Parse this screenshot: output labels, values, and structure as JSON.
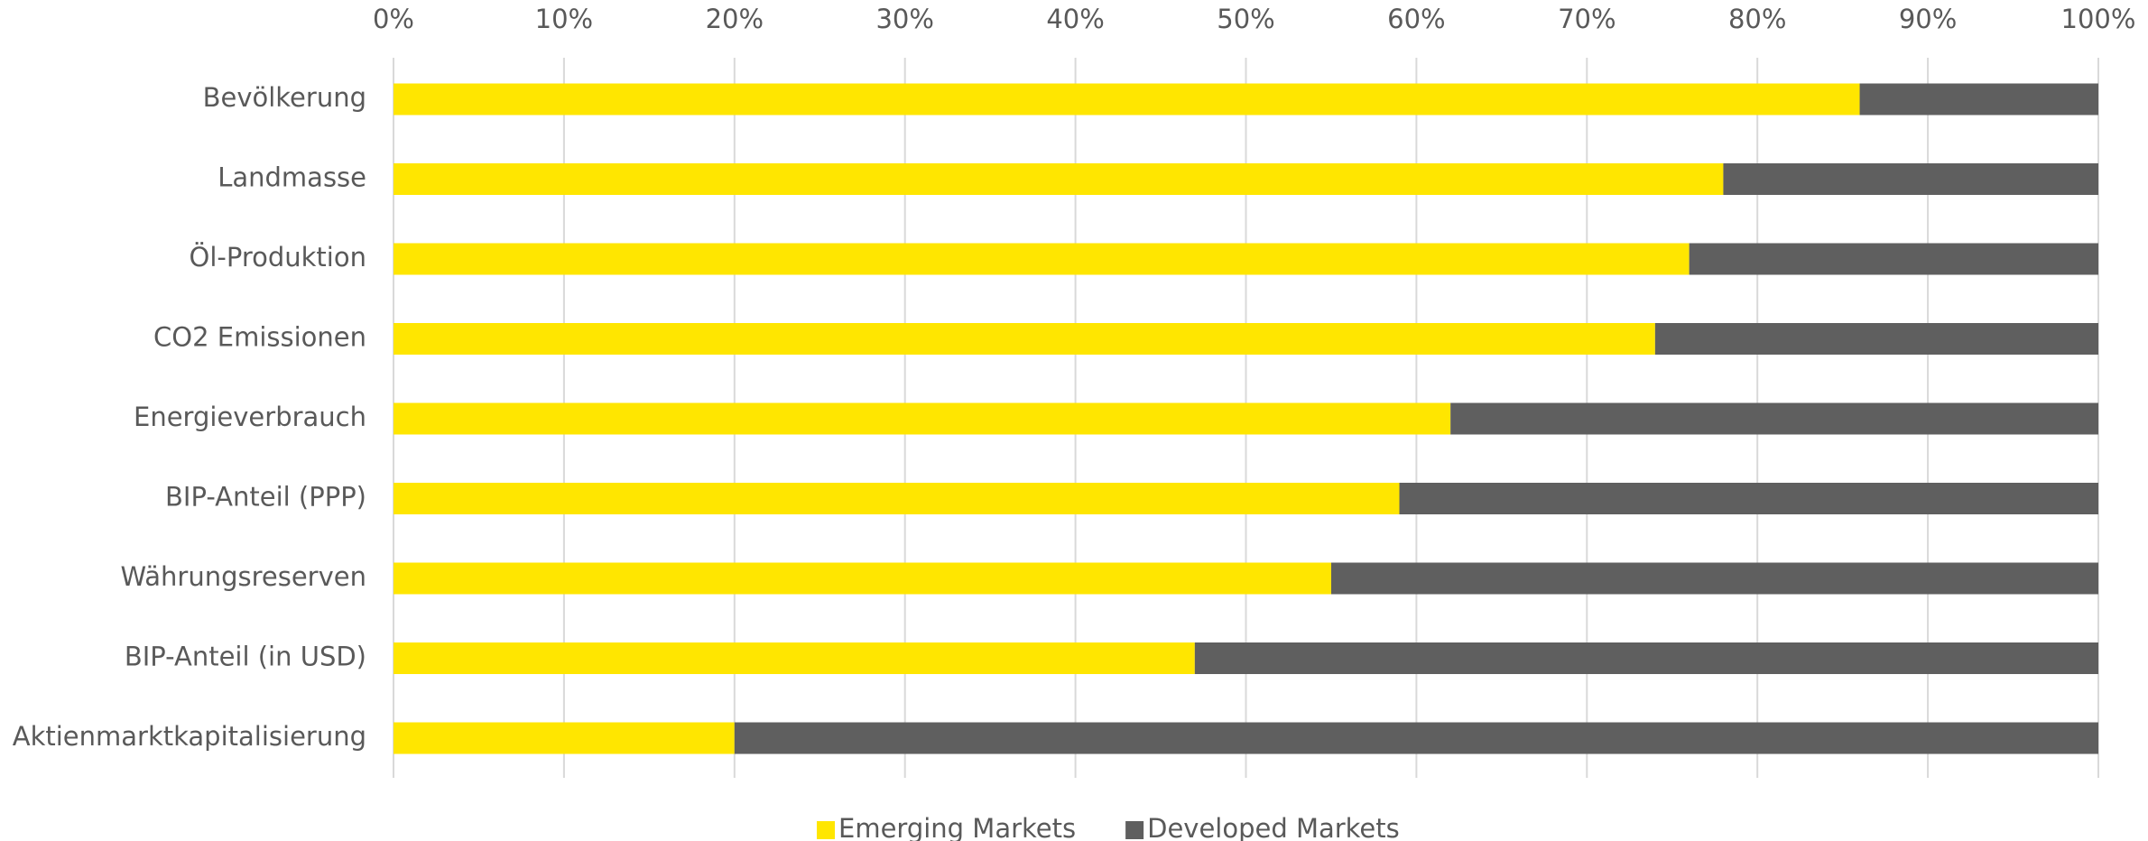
{
  "chart_data": {
    "type": "bar",
    "orientation": "horizontal",
    "stacked": true,
    "categories": [
      "Bevölkerung",
      "Landmasse",
      "Öl-Produktion",
      "CO2 Emissionen",
      "Energieverbrauch",
      "BIP-Anteil (PPP)",
      "Währungsreserven",
      "BIP-Anteil (in USD)",
      "Aktienmarktkapitalisierung"
    ],
    "series": [
      {
        "name": "Emerging Markets",
        "color": "#ffe600",
        "values": [
          86,
          78,
          76,
          74,
          62,
          59,
          55,
          47,
          20
        ]
      },
      {
        "name": "Developed Markets",
        "color": "#5f5f5f",
        "values": [
          14,
          22,
          24,
          26,
          38,
          41,
          45,
          53,
          80
        ]
      }
    ],
    "xlim": [
      0,
      100
    ],
    "xticks": [
      {
        "value": 0,
        "label": "0%"
      },
      {
        "value": 10,
        "label": "10%"
      },
      {
        "value": 20,
        "label": "20%"
      },
      {
        "value": 30,
        "label": "30%"
      },
      {
        "value": 40,
        "label": "40%"
      },
      {
        "value": 50,
        "label": "50%"
      },
      {
        "value": 60,
        "label": "60%"
      },
      {
        "value": 70,
        "label": "70%"
      },
      {
        "value": 80,
        "label": "80%"
      },
      {
        "value": 90,
        "label": "90%"
      },
      {
        "value": 100,
        "label": "100%"
      }
    ],
    "grid": true,
    "legend": "bottom"
  }
}
